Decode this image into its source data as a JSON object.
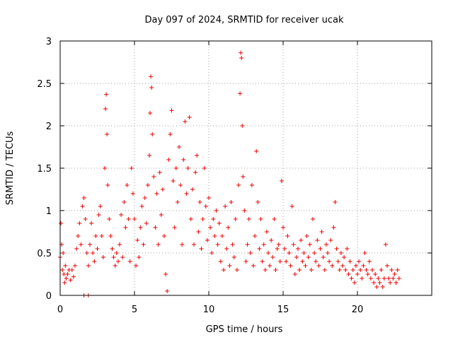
{
  "chart_data": {
    "type": "scatter",
    "title": "Day 097 of 2024, SRMTID for receiver ucak",
    "xlabel": "GPS time / hours",
    "ylabel": "SRMTID / TECUs",
    "xlim": [
      0,
      25
    ],
    "ylim": [
      0,
      3
    ],
    "xticks": [
      0,
      5,
      10,
      15,
      20
    ],
    "yticks": [
      0,
      0.5,
      1,
      1.5,
      2,
      2.5,
      3
    ],
    "grid": true,
    "marker": "+",
    "series": [
      {
        "name": "SRMTID",
        "color": "#ee0000",
        "points": [
          [
            0.0,
            0.45
          ],
          [
            0.05,
            0.85
          ],
          [
            0.1,
            0.6
          ],
          [
            0.15,
            0.3
          ],
          [
            0.2,
            0.5
          ],
          [
            0.25,
            0.25
          ],
          [
            0.3,
            0.15
          ],
          [
            0.35,
            0.35
          ],
          [
            0.4,
            0.2
          ],
          [
            0.5,
            0.25
          ],
          [
            0.6,
            0.3
          ],
          [
            0.7,
            0.18
          ],
          [
            0.8,
            0.3
          ],
          [
            0.9,
            0.22
          ],
          [
            1.0,
            0.35
          ],
          [
            1.1,
            0.55
          ],
          [
            1.2,
            0.7
          ],
          [
            1.3,
            0.85
          ],
          [
            1.4,
            0.6
          ],
          [
            1.5,
            1.05
          ],
          [
            1.6,
            1.15
          ],
          [
            1.7,
            0.9
          ],
          [
            1.8,
            0.5
          ],
          [
            1.9,
            0.35
          ],
          [
            2.0,
            0.6
          ],
          [
            2.1,
            0.85
          ],
          [
            2.2,
            0.5
          ],
          [
            2.3,
            0.4
          ],
          [
            2.4,
            0.7
          ],
          [
            2.5,
            0.55
          ],
          [
            2.6,
            0.95
          ],
          [
            2.7,
            1.05
          ],
          [
            2.8,
            0.7
          ],
          [
            2.9,
            0.45
          ],
          [
            3.0,
            1.5
          ],
          [
            3.05,
            2.2
          ],
          [
            3.1,
            2.37
          ],
          [
            3.15,
            1.9
          ],
          [
            3.2,
            1.3
          ],
          [
            3.3,
            0.9
          ],
          [
            3.4,
            0.7
          ],
          [
            3.5,
            0.55
          ],
          [
            3.6,
            0.45
          ],
          [
            3.7,
            0.35
          ],
          [
            3.8,
            0.5
          ],
          [
            3.9,
            0.4
          ],
          [
            4.0,
            0.6
          ],
          [
            4.1,
            0.95
          ],
          [
            4.2,
            0.45
          ],
          [
            4.3,
            1.1
          ],
          [
            4.4,
            0.8
          ],
          [
            4.5,
            1.3
          ],
          [
            4.6,
            0.9
          ],
          [
            4.7,
            0.4
          ],
          [
            4.8,
            1.5
          ],
          [
            4.9,
            1.2
          ],
          [
            5.0,
            0.9
          ],
          [
            5.1,
            0.35
          ],
          [
            5.2,
            0.65
          ],
          [
            5.3,
            0.45
          ],
          [
            5.4,
            0.8
          ],
          [
            5.5,
            1.05
          ],
          [
            5.6,
            0.6
          ],
          [
            5.7,
            1.15
          ],
          [
            5.8,
            0.85
          ],
          [
            5.9,
            1.3
          ],
          [
            6.0,
            1.65
          ],
          [
            6.05,
            2.15
          ],
          [
            6.1,
            2.58
          ],
          [
            6.15,
            2.45
          ],
          [
            6.2,
            1.9
          ],
          [
            6.3,
            1.4
          ],
          [
            6.4,
            0.8
          ],
          [
            6.5,
            1.2
          ],
          [
            6.6,
            0.6
          ],
          [
            6.7,
            1.45
          ],
          [
            6.8,
            0.95
          ],
          [
            6.9,
            1.25
          ],
          [
            7.0,
            0.7
          ],
          [
            7.1,
            0.25
          ],
          [
            7.2,
            0.05
          ],
          [
            7.3,
            1.6
          ],
          [
            7.4,
            1.9
          ],
          [
            7.5,
            2.18
          ],
          [
            7.6,
            1.35
          ],
          [
            7.7,
            0.8
          ],
          [
            7.8,
            1.5
          ],
          [
            7.9,
            1.1
          ],
          [
            8.0,
            1.75
          ],
          [
            8.1,
            1.3
          ],
          [
            8.2,
            0.6
          ],
          [
            8.3,
            1.6
          ],
          [
            8.4,
            2.05
          ],
          [
            8.5,
            1.2
          ],
          [
            8.6,
            1.5
          ],
          [
            8.7,
            2.1
          ],
          [
            8.8,
            0.9
          ],
          [
            8.9,
            1.25
          ],
          [
            9.0,
            0.6
          ],
          [
            9.1,
            1.45
          ],
          [
            9.2,
            1.65
          ],
          [
            9.3,
            0.75
          ],
          [
            9.4,
            1.1
          ],
          [
            9.5,
            0.55
          ],
          [
            9.6,
            0.9
          ],
          [
            9.7,
            1.5
          ],
          [
            9.8,
            1.05
          ],
          [
            9.9,
            0.65
          ],
          [
            10.0,
            1.15
          ],
          [
            10.1,
            0.8
          ],
          [
            10.2,
            0.5
          ],
          [
            10.3,
            0.9
          ],
          [
            10.4,
            0.7
          ],
          [
            10.5,
            1.0
          ],
          [
            10.6,
            0.6
          ],
          [
            10.7,
            0.85
          ],
          [
            10.8,
            0.4
          ],
          [
            10.9,
            0.7
          ],
          [
            11.0,
            0.3
          ],
          [
            11.1,
            1.05
          ],
          [
            11.2,
            0.55
          ],
          [
            11.3,
            0.8
          ],
          [
            11.4,
            0.35
          ],
          [
            11.5,
            1.1
          ],
          [
            11.6,
            0.6
          ],
          [
            11.7,
            0.45
          ],
          [
            11.8,
            0.9
          ],
          [
            11.9,
            0.3
          ],
          [
            12.0,
            1.3
          ],
          [
            12.1,
            2.38
          ],
          [
            12.15,
            2.86
          ],
          [
            12.2,
            2.8
          ],
          [
            12.25,
            2.0
          ],
          [
            12.3,
            1.4
          ],
          [
            12.4,
            1.0
          ],
          [
            12.5,
            0.4
          ],
          [
            12.6,
            0.6
          ],
          [
            12.7,
            0.9
          ],
          [
            12.8,
            0.5
          ],
          [
            12.9,
            1.3
          ],
          [
            13.0,
            0.35
          ],
          [
            13.1,
            0.7
          ],
          [
            13.2,
            1.7
          ],
          [
            13.3,
            1.1
          ],
          [
            13.4,
            0.55
          ],
          [
            13.5,
            0.9
          ],
          [
            13.6,
            0.4
          ],
          [
            13.7,
            0.6
          ],
          [
            13.8,
            0.3
          ],
          [
            13.9,
            0.75
          ],
          [
            14.0,
            0.5
          ],
          [
            14.1,
            0.35
          ],
          [
            14.2,
            0.65
          ],
          [
            14.3,
            0.45
          ],
          [
            14.4,
            0.9
          ],
          [
            14.5,
            0.3
          ],
          [
            14.6,
            0.55
          ],
          [
            14.7,
            0.6
          ],
          [
            14.8,
            0.4
          ],
          [
            14.9,
            1.35
          ],
          [
            15.0,
            0.8
          ],
          [
            15.1,
            0.55
          ],
          [
            15.2,
            0.4
          ],
          [
            15.3,
            0.7
          ],
          [
            15.4,
            0.5
          ],
          [
            15.5,
            0.35
          ],
          [
            15.6,
            1.05
          ],
          [
            15.7,
            0.6
          ],
          [
            15.8,
            0.25
          ],
          [
            15.9,
            0.45
          ],
          [
            16.0,
            0.55
          ],
          [
            16.1,
            0.3
          ],
          [
            16.2,
            0.65
          ],
          [
            16.3,
            0.4
          ],
          [
            16.4,
            0.5
          ],
          [
            16.5,
            0.35
          ],
          [
            16.6,
            0.7
          ],
          [
            16.7,
            0.45
          ],
          [
            16.8,
            0.6
          ],
          [
            16.9,
            0.3
          ],
          [
            17.0,
            0.9
          ],
          [
            17.1,
            0.5
          ],
          [
            17.2,
            0.4
          ],
          [
            17.3,
            0.65
          ],
          [
            17.4,
            0.35
          ],
          [
            17.5,
            0.55
          ],
          [
            17.6,
            0.75
          ],
          [
            17.7,
            0.45
          ],
          [
            17.8,
            0.3
          ],
          [
            17.9,
            0.6
          ],
          [
            18.0,
            0.5
          ],
          [
            18.1,
            0.4
          ],
          [
            18.2,
            0.65
          ],
          [
            18.3,
            0.35
          ],
          [
            18.4,
            0.8
          ],
          [
            18.5,
            1.1
          ],
          [
            18.6,
            0.55
          ],
          [
            18.7,
            0.4
          ],
          [
            18.8,
            0.3
          ],
          [
            18.9,
            0.5
          ],
          [
            19.0,
            0.35
          ],
          [
            19.1,
            0.45
          ],
          [
            19.2,
            0.3
          ],
          [
            19.3,
            0.55
          ],
          [
            19.4,
            0.25
          ],
          [
            19.5,
            0.4
          ],
          [
            19.6,
            0.2
          ],
          [
            19.7,
            0.3
          ],
          [
            19.8,
            0.15
          ],
          [
            19.9,
            0.35
          ],
          [
            20.0,
            0.25
          ],
          [
            20.1,
            0.4
          ],
          [
            20.2,
            0.3
          ],
          [
            20.3,
            0.2
          ],
          [
            20.4,
            0.35
          ],
          [
            20.5,
            0.5
          ],
          [
            20.6,
            0.3
          ],
          [
            20.7,
            0.25
          ],
          [
            20.8,
            0.4
          ],
          [
            20.9,
            0.2
          ],
          [
            21.0,
            0.3
          ],
          [
            21.1,
            0.15
          ],
          [
            21.2,
            0.25
          ],
          [
            21.3,
            0.1
          ],
          [
            21.4,
            0.2
          ],
          [
            21.5,
            0.15
          ],
          [
            21.6,
            0.3
          ],
          [
            21.7,
            0.1
          ],
          [
            21.8,
            0.2
          ],
          [
            21.9,
            0.6
          ],
          [
            22.0,
            0.35
          ],
          [
            22.1,
            0.2
          ],
          [
            22.2,
            0.15
          ],
          [
            22.3,
            0.3
          ],
          [
            22.4,
            0.2
          ],
          [
            22.5,
            0.25
          ],
          [
            22.6,
            0.15
          ],
          [
            22.7,
            0.3
          ],
          [
            22.8,
            0.2
          ],
          [
            1.6,
            0.0
          ],
          [
            1.9,
            0.0
          ]
        ]
      }
    ]
  }
}
